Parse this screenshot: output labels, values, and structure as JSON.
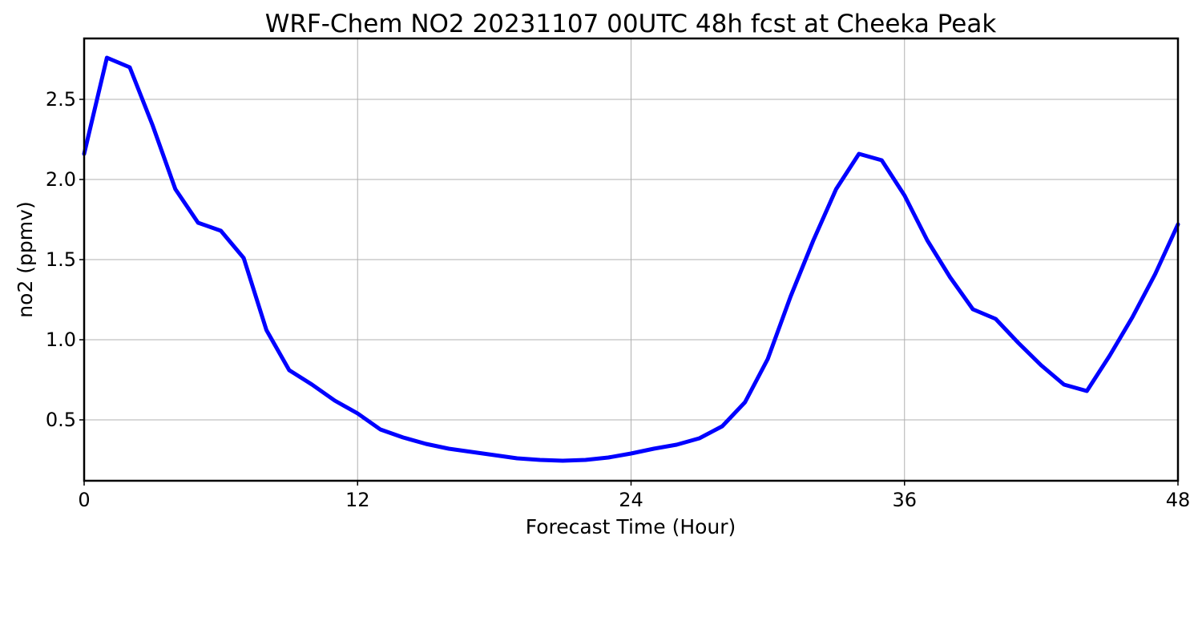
{
  "chart_data": {
    "type": "line",
    "title": "WRF-Chem NO2  20231107 00UTC 48h fcst at Cheeka Peak",
    "xlabel": "Forecast Time (Hour)",
    "ylabel": "no2  (ppmv)",
    "xlim": [
      0,
      48
    ],
    "ylim": [
      0.12,
      2.88
    ],
    "xticks": [
      0,
      12,
      24,
      36,
      48
    ],
    "yticks": [
      0.5,
      1.0,
      1.5,
      2.0,
      2.5
    ],
    "ytick_labels": [
      "0.5",
      "1.0",
      "1.5",
      "2.0",
      "2.5"
    ],
    "grid": true,
    "series": [
      {
        "color": "#0000ff",
        "x": [
          0,
          1,
          2,
          3,
          4,
          5,
          6,
          7,
          8,
          9,
          10,
          11,
          12,
          13,
          14,
          15,
          16,
          17,
          18,
          19,
          20,
          21,
          22,
          23,
          24,
          25,
          26,
          27,
          28,
          29,
          30,
          31,
          32,
          33,
          34,
          35,
          36,
          37,
          38,
          39,
          40,
          41,
          42,
          43,
          44,
          45,
          46,
          47,
          48
        ],
        "values": [
          2.16,
          2.76,
          2.7,
          2.34,
          1.94,
          1.73,
          1.68,
          1.51,
          1.06,
          0.81,
          0.72,
          0.62,
          0.54,
          0.44,
          0.39,
          0.35,
          0.32,
          0.3,
          0.28,
          0.26,
          0.25,
          0.245,
          0.25,
          0.265,
          0.29,
          0.32,
          0.345,
          0.385,
          0.46,
          0.61,
          0.88,
          1.27,
          1.62,
          1.94,
          2.16,
          2.12,
          1.9,
          1.62,
          1.39,
          1.19,
          1.13,
          0.98,
          0.84,
          0.72,
          0.68,
          0.9,
          1.14,
          1.41,
          1.72
        ]
      }
    ]
  }
}
